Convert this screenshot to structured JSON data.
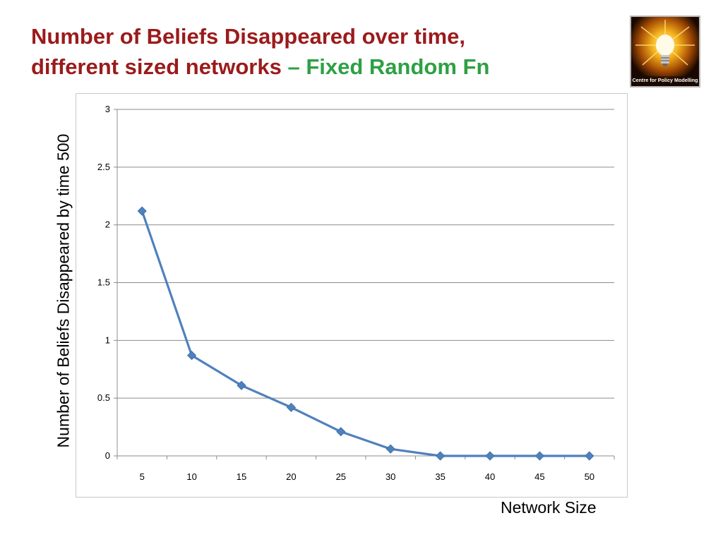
{
  "slide": {
    "title_line1": "Number of Beliefs Disappeared over time,",
    "title_line2": "different sized networks",
    "title_accent": "– Fixed Random Fn"
  },
  "logo": {
    "icon": "lightbulb-icon",
    "text": "Centre for Policy Modelling"
  },
  "colors": {
    "title": "#9b1b1b",
    "accent": "#2ea043",
    "series": "#4f81bd",
    "grid": "#8c8c8c"
  },
  "chart_data": {
    "type": "line",
    "title": "",
    "xlabel": "Network Size",
    "ylabel": "Number of Beliefs Disappeared by time 500",
    "categories": [
      "5",
      "10",
      "15",
      "20",
      "25",
      "30",
      "35",
      "40",
      "45",
      "50"
    ],
    "series": [
      {
        "values": [
          2.12,
          0.87,
          0.61,
          0.42,
          0.21,
          0.06,
          0,
          0,
          0,
          0
        ]
      }
    ],
    "yticks": [
      "0",
      "0.5",
      "1",
      "1.5",
      "2",
      "2.5",
      "3"
    ],
    "ylim": [
      0,
      3
    ],
    "grid": true,
    "legend": "none",
    "marker": "diamond"
  }
}
